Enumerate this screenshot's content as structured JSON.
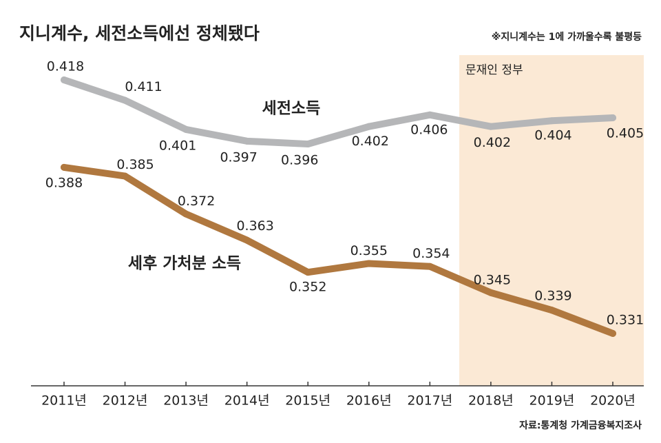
{
  "chart_data": {
    "type": "line",
    "title": "지니계수, 세전소득에선 정체됐다",
    "subtitle": "※지니계수는 1에 가까울수록 불평등",
    "source": "자료:통계청 가계금융복지조사",
    "annotations": [
      "문재인 정부"
    ],
    "categories": [
      "2011년",
      "2012년",
      "2013년",
      "2014년",
      "2015년",
      "2016년",
      "2017년",
      "2018년",
      "2019년",
      "2020년"
    ],
    "series": [
      {
        "name": "세전소득",
        "color": "#b5b6b8",
        "values": [
          0.418,
          0.411,
          0.401,
          0.397,
          0.396,
          0.402,
          0.406,
          0.402,
          0.404,
          0.405
        ]
      },
      {
        "name": "세후 가처분 소득",
        "color": "#b0783f",
        "values": [
          0.388,
          0.385,
          0.372,
          0.363,
          0.352,
          0.355,
          0.354,
          0.345,
          0.339,
          0.331
        ]
      }
    ]
  }
}
